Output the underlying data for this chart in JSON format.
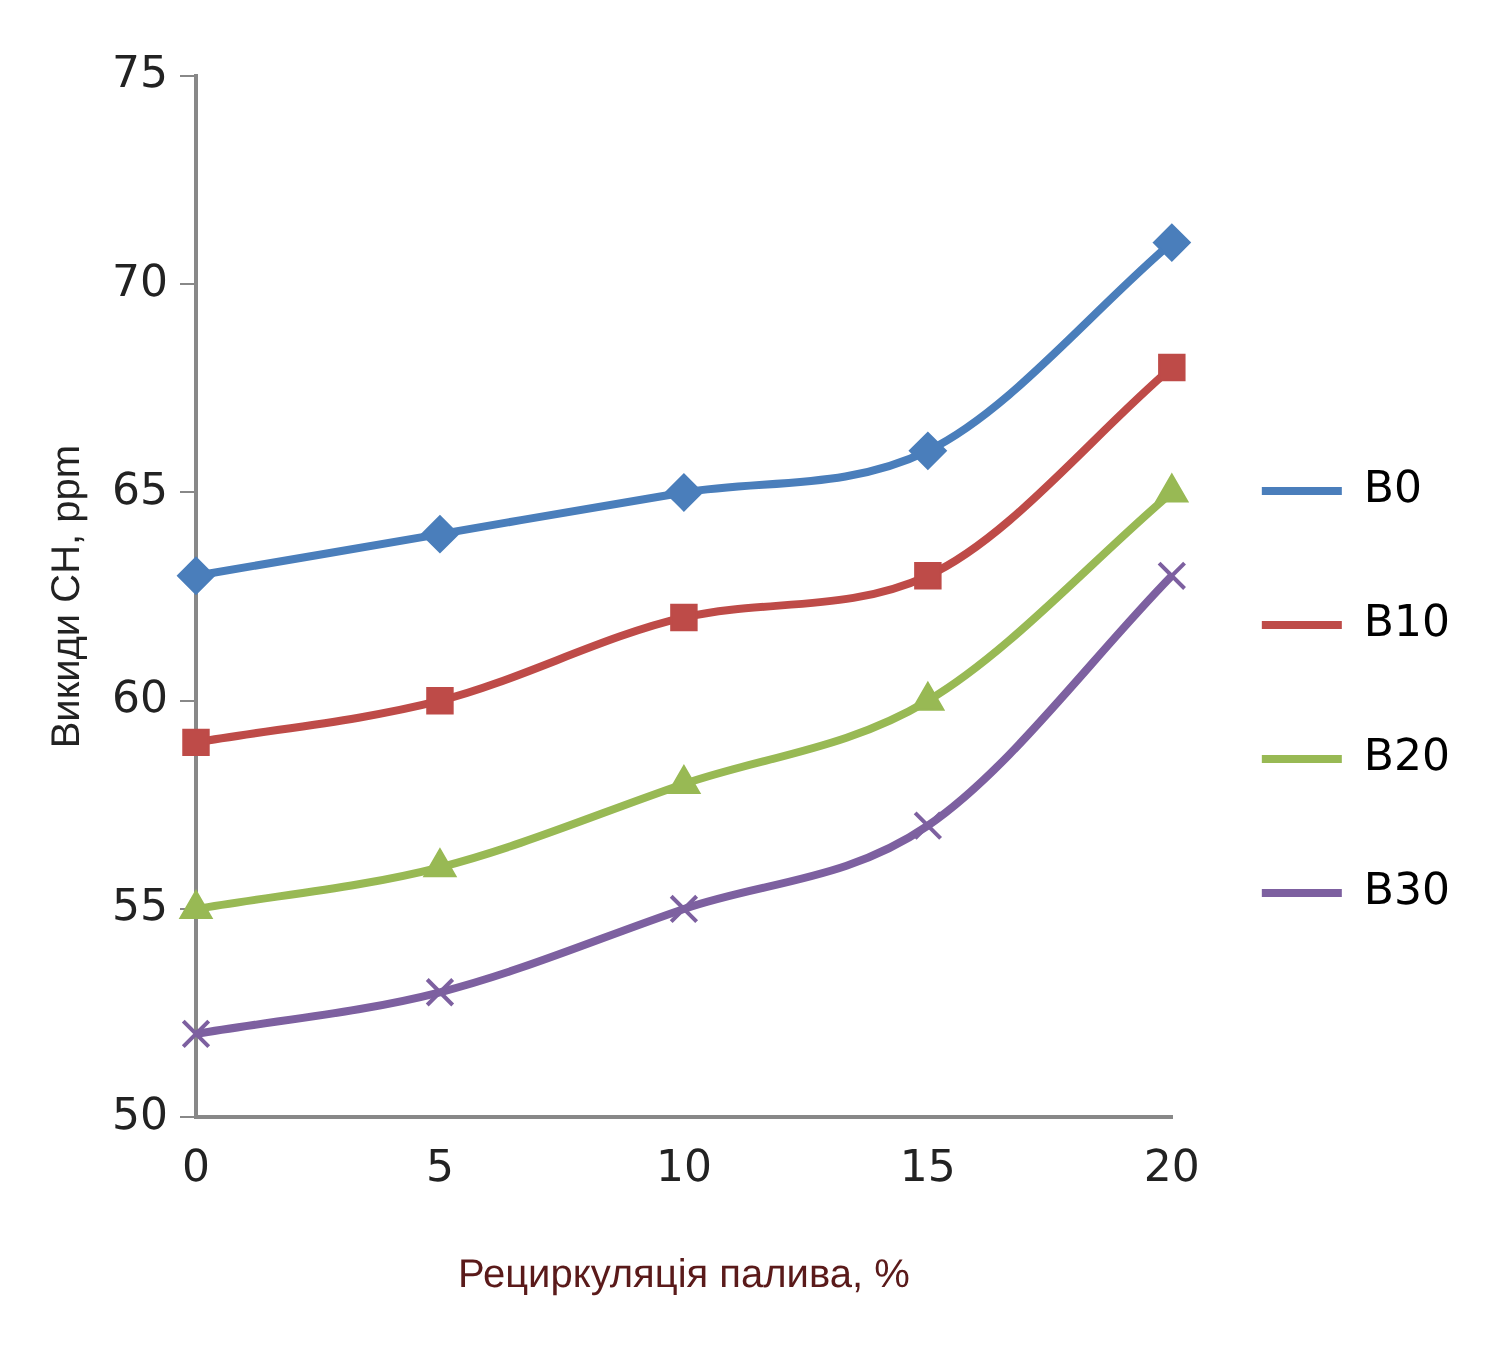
{
  "chart_data": {
    "type": "line",
    "xlabel": "Рециркуляція палива, %",
    "ylabel": "Викиди CH, ppm",
    "categories": [
      "0",
      "5",
      "10",
      "15",
      "20"
    ],
    "series": [
      {
        "name": "B0",
        "color": "#4a7ebb",
        "marker": "diamond",
        "values": [
          63,
          64,
          65,
          66,
          71
        ]
      },
      {
        "name": "B10",
        "color": "#be4b48",
        "marker": "square",
        "values": [
          59,
          60,
          62,
          63,
          68
        ]
      },
      {
        "name": "B20",
        "color": "#98b954",
        "marker": "triangle",
        "values": [
          55,
          56,
          58,
          60,
          65
        ]
      },
      {
        "name": "B30",
        "color": "#7d60a0",
        "marker": "cross",
        "values": [
          52,
          53,
          55,
          57,
          63
        ]
      }
    ],
    "ylim": [
      50,
      75
    ],
    "yticks": [
      50,
      55,
      60,
      65,
      70,
      75
    ],
    "grid": false,
    "legend": "right",
    "line_style": "solid"
  }
}
